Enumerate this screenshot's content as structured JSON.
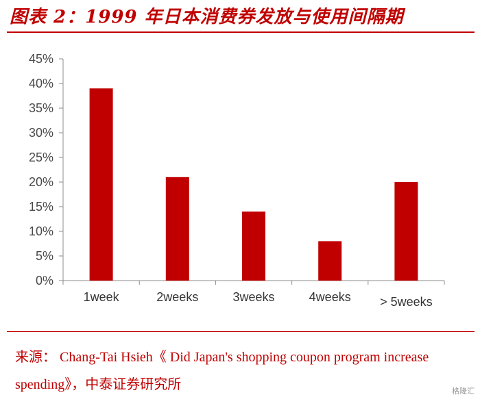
{
  "header": {
    "title": "图表 2：1999 年日本消费券发放与使用间隔期"
  },
  "footer": {
    "source": "来源： Chang-Tai Hsieh《 Did Japan's shopping coupon program increase spending》，中泰证券研究所",
    "watermark": "格隆汇"
  },
  "chart_data": {
    "type": "bar",
    "title": "图表 2：1999 年日本消费券发放与使用间隔期",
    "categories": [
      "1week",
      "2weeks",
      "3weeks",
      "4weeks",
      "> 5weeks"
    ],
    "values": [
      39,
      21,
      14,
      8,
      20
    ],
    "yticks": [
      "0%",
      "5%",
      "10%",
      "15%",
      "20%",
      "25%",
      "30%",
      "35%",
      "40%",
      "45%"
    ],
    "ylim": [
      0,
      45
    ],
    "xlabel": "",
    "ylabel": "",
    "grid": false,
    "bar_color": "#c00000",
    "axis_color": "#8c8c8c"
  }
}
